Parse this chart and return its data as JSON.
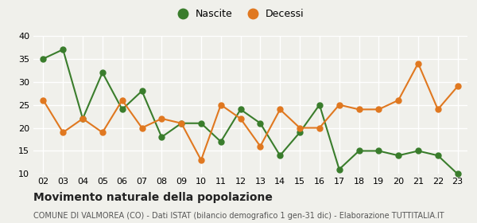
{
  "years": [
    "02",
    "03",
    "04",
    "05",
    "06",
    "07",
    "08",
    "09",
    "10",
    "11",
    "12",
    "13",
    "14",
    "15",
    "16",
    "17",
    "18",
    "19",
    "20",
    "21",
    "22",
    "23"
  ],
  "nascite": [
    35,
    37,
    22,
    32,
    24,
    28,
    18,
    21,
    21,
    17,
    24,
    21,
    14,
    19,
    25,
    11,
    15,
    15,
    14,
    15,
    14,
    10
  ],
  "decessi": [
    26,
    19,
    22,
    19,
    26,
    20,
    22,
    21,
    13,
    25,
    22,
    16,
    24,
    20,
    20,
    25,
    24,
    24,
    26,
    34,
    24,
    29
  ],
  "nascite_color": "#3a7d2c",
  "decessi_color": "#e07820",
  "background_color": "#f0f0eb",
  "grid_color": "#ffffff",
  "title": "Movimento naturale della popolazione",
  "subtitle": "COMUNE DI VALMOREA (CO) - Dati ISTAT (bilancio demografico 1 gen-31 dic) - Elaborazione TUTTITALIA.IT",
  "legend_nascite": "Nascite",
  "legend_decessi": "Decessi",
  "ylim": [
    10,
    40
  ],
  "yticks": [
    10,
    15,
    20,
    25,
    30,
    35,
    40
  ],
  "marker_size": 5,
  "line_width": 1.5,
  "tick_fontsize": 8,
  "title_fontsize": 10,
  "subtitle_fontsize": 7
}
